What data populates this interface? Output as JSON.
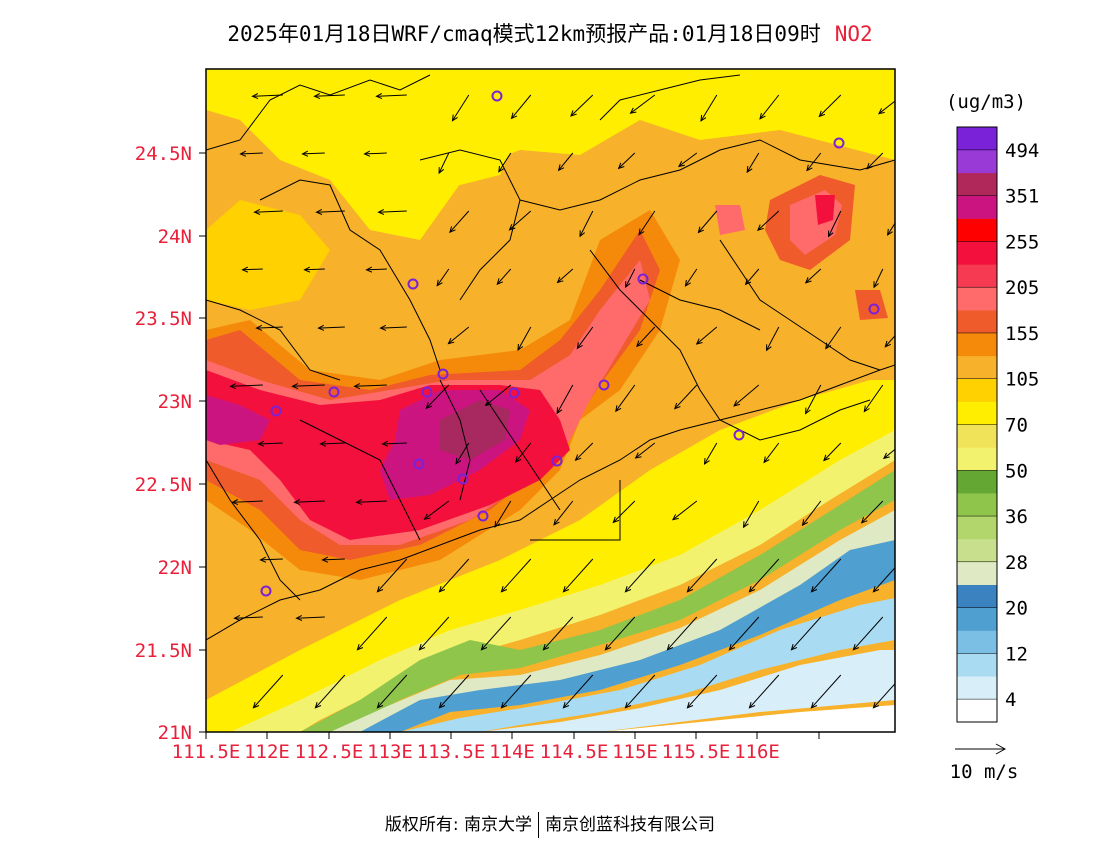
{
  "title": {
    "main": "2025年01月18日WRF/cmaq模式12km预报产品:01月18日09时",
    "pollutant": "NO2"
  },
  "axes": {
    "lat_labels": [
      "24.5N",
      "24N",
      "23.5N",
      "23N",
      "22.5N",
      "22N",
      "21.5N",
      "21N"
    ],
    "lon_labels": [
      "111.5E",
      "112E",
      "112.5E",
      "113E",
      "113.5E",
      "114E",
      "114.5E",
      "115E",
      "115.5E",
      "116E"
    ]
  },
  "colorbar": {
    "unit": "(ug/m3)",
    "colors": [
      "#ffffff",
      "#d8eef9",
      "#a9dcf3",
      "#7bbfe4",
      "#4f9fd0",
      "#3a82c0",
      "#dfe9c3",
      "#c8e08e",
      "#b3d66c",
      "#8fc54a",
      "#64a833",
      "#f2f26e",
      "#f0e35a",
      "#ffee00",
      "#ffd100",
      "#f7b12a",
      "#f58a0a",
      "#ef5b2a",
      "#ff6a6a",
      "#f53a52",
      "#f4103c",
      "#ff0000",
      "#cc1480",
      "#b0285a",
      "#9a3ad6",
      "#7a22d8"
    ],
    "labels": [
      "4",
      "12",
      "20",
      "28",
      "36",
      "50",
      "70",
      "105",
      "155",
      "205",
      "255",
      "351",
      "494"
    ]
  },
  "wind_legend": {
    "label": "10 m/s"
  },
  "map_colors": {
    "ocean_far": "#ffffff",
    "ocean_light": "#d8eef9",
    "ocean_mid": "#a9dcf3",
    "ocean_deep": "#4f9fd0",
    "coast_pale": "#dfe9c3",
    "coast_green": "#8fc54a",
    "coast_dark_green": "#64a833",
    "coast_yellow": "#f2f26e",
    "land_yellow": "#ffee00",
    "land_gold": "#ffd100",
    "land_orange": "#f7b12a",
    "land_dark_orange": "#f58a0a",
    "hot_orange": "#ef5b2a",
    "hot_salmon": "#ff6a6a",
    "hot_red": "#f4103c",
    "hot_magenta": "#cc1480",
    "hot_maroon": "#a82860",
    "station_marker": "#7a22d8"
  },
  "footer": {
    "left": "版权所有: 南京大学",
    "right": "南京创蓝科技有限公司"
  }
}
